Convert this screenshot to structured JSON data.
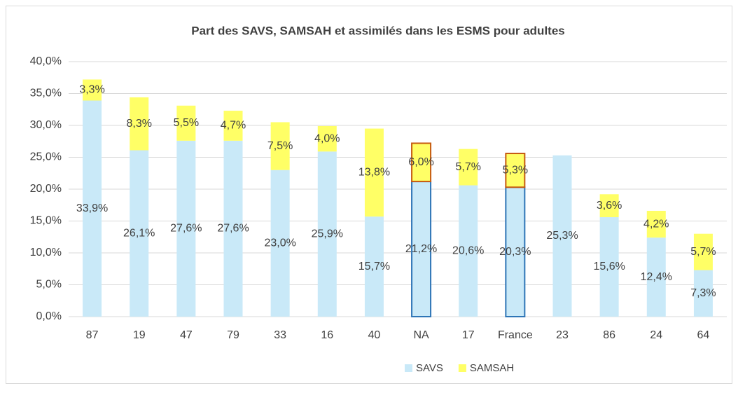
{
  "chart_data": {
    "type": "stacked_bar",
    "title": "Part des SAVS, SAMSAH et assimilés dans les ESMS pour adultes",
    "categories": [
      "87",
      "19",
      "47",
      "79",
      "33",
      "16",
      "40",
      "NA",
      "17",
      "France",
      "23",
      "86",
      "24",
      "64"
    ],
    "series": [
      {
        "name": "SAVS",
        "color": "#c9e9f8",
        "highlight_stroke": "#2e75b6",
        "values": [
          33.9,
          26.1,
          27.6,
          27.6,
          23.0,
          25.9,
          15.7,
          21.2,
          20.6,
          20.3,
          25.3,
          15.6,
          12.4,
          7.3
        ],
        "value_labels": [
          "33,9%",
          "26,1%",
          "27,6%",
          "27,6%",
          "23,0%",
          "25,9%",
          "15,7%",
          "21,2%",
          "20,6%",
          "20,3%",
          "25,3%",
          "15,6%",
          "12,4%",
          "7,3%"
        ]
      },
      {
        "name": "SAMSAH",
        "color": "#ffff66",
        "highlight_stroke": "#c55a11",
        "values": [
          3.3,
          8.3,
          5.5,
          4.7,
          7.5,
          4.0,
          13.8,
          6.0,
          5.7,
          5.3,
          null,
          3.6,
          4.2,
          5.7
        ],
        "value_labels": [
          "3,3%",
          "8,3%",
          "5,5%",
          "4,7%",
          "7,5%",
          "4,0%",
          "13,8%",
          "6,0%",
          "5,7%",
          "5,3%",
          null,
          "3,6%",
          "4,2%",
          "5,7%"
        ]
      }
    ],
    "highlight": [
      "NA",
      "France"
    ],
    "ylim": [
      0,
      40
    ],
    "yticks": [
      {
        "value": 0,
        "label": "0,0%"
      },
      {
        "value": 5,
        "label": "5,0%"
      },
      {
        "value": 10,
        "label": "10,0%"
      },
      {
        "value": 15,
        "label": "15,0%"
      },
      {
        "value": 20,
        "label": "20,0%"
      },
      {
        "value": 25,
        "label": "25,0%"
      },
      {
        "value": 30,
        "label": "30,0%"
      },
      {
        "value": 35,
        "label": "35,0%"
      },
      {
        "value": 40,
        "label": "40,0%"
      }
    ],
    "grid": true,
    "legend": "bottom"
  }
}
